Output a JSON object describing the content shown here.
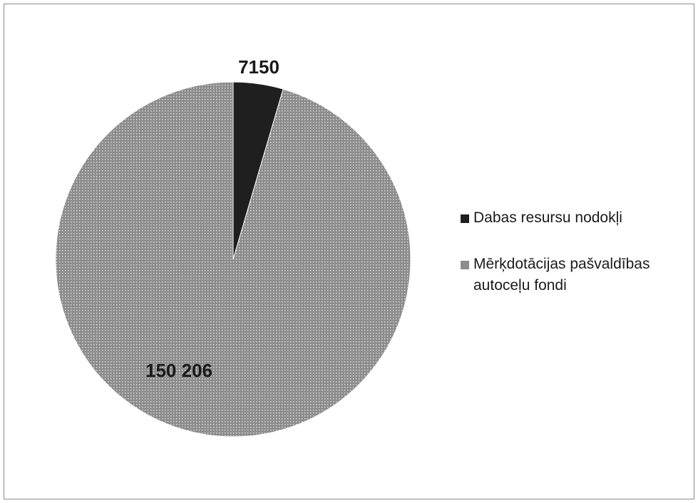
{
  "chart_data": {
    "type": "pie",
    "title": "",
    "slices": [
      {
        "label": "Dabas resursu nodokļi",
        "value": 7150,
        "value_label": "7150",
        "color": "#1f1f1f",
        "pattern": "solid"
      },
      {
        "label": "Mērķdotācijas pašvaldības autoceļu fondi",
        "value": 150206,
        "value_label": "150 206",
        "color": "#8c8c8c",
        "pattern": "dotted"
      }
    ],
    "start_angle_deg": 0,
    "direction": "clockwise",
    "legend_placement": "right"
  }
}
